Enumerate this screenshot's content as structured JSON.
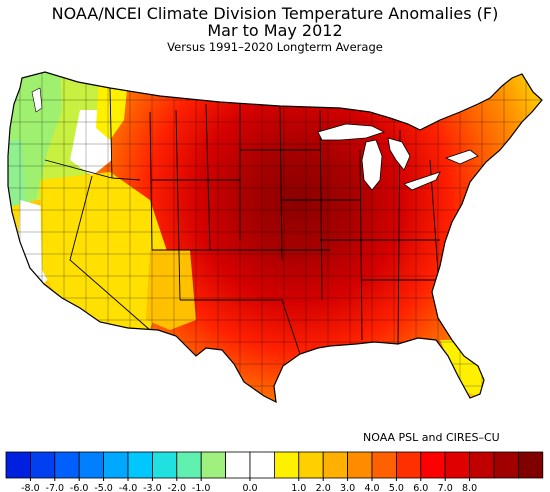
{
  "title_line1": "NOAA/NCEI Climate Division Temperature Anomalies (F)",
  "title_line2": "Mar to May 2012",
  "subtitle": "Versus 1991–2020 Longterm Average",
  "credit": "NOAA PSL and CIRES–CU",
  "legend": {
    "colors": [
      "#0020e0",
      "#0040f0",
      "#0060ff",
      "#0080ff",
      "#00a8ff",
      "#00c8ff",
      "#20e0e0",
      "#60f0b0",
      "#a0f080",
      "#ffffff",
      "#ffffff",
      "#fff000",
      "#ffd000",
      "#ffb000",
      "#ff8c00",
      "#ff6000",
      "#ff3000",
      "#ff0000",
      "#e00000",
      "#c00000",
      "#a00000",
      "#800000"
    ],
    "ticks": [
      "-8.0",
      "-7.0",
      "-6.0",
      "-5.0",
      "-4.0",
      "-3.0",
      "-2.0",
      "-1.0",
      "0.0",
      "1.0",
      "2.0",
      "3.0",
      "4.0",
      "5.0",
      "6.0",
      "7.0",
      "8.0"
    ],
    "tick_after_bin": [
      1,
      2,
      3,
      4,
      5,
      6,
      7,
      8,
      10,
      12,
      13,
      14,
      15,
      16,
      17,
      18,
      19
    ]
  }
}
